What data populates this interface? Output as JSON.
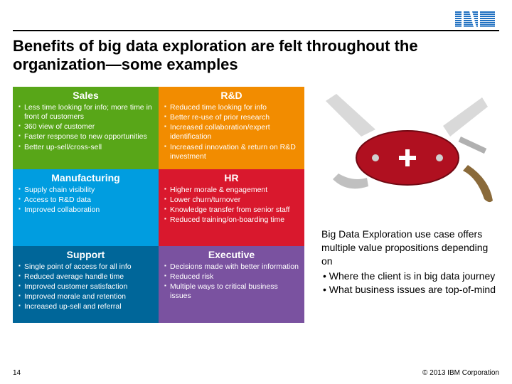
{
  "page_number": "14",
  "copyright": "© 2013 IBM Corporation",
  "title": "Benefits of big data exploration are felt throughout the organization—some examples",
  "colors": {
    "top_rule": "#000000",
    "title_text": "#000000",
    "cell_text": "#ffffff",
    "sales_bg": "#58a618",
    "rd_bg": "#f28c00",
    "mfg_bg": "#009de0",
    "hr_bg": "#d9182d",
    "support_bg": "#006699",
    "exec_bg": "#7a52a0"
  },
  "cells": {
    "sales": {
      "heading": "Sales",
      "items": [
        "Less time looking for info; more time in front of customers",
        "360 view of customer",
        "Faster response to new opportunities",
        "Better up-sell/cross-sell"
      ]
    },
    "rd": {
      "heading": "R&D",
      "items": [
        "Reduced time looking for info",
        "Better re-use of prior research",
        "Increased collaboration/expert identification",
        "Increased innovation & return on R&D investment"
      ]
    },
    "mfg": {
      "heading": "Manufacturing",
      "items": [
        "Supply chain visibility",
        "Access to R&D data",
        "Improved collaboration"
      ]
    },
    "hr": {
      "heading": "HR",
      "items": [
        "Higher morale & engagement",
        "Lower churn/turnover",
        "Knowledge transfer from senior staff",
        "Reduced training/on-boarding time"
      ]
    },
    "support": {
      "heading": "Support",
      "items": [
        "Single point of access for all info",
        "Reduced average handle time",
        "Improved customer satisfaction",
        "Improved morale and retention",
        "Increased up-sell and referral"
      ]
    },
    "exec": {
      "heading": "Executive",
      "items": [
        "Decisions made with better information",
        "Reduced risk",
        "Multiple ways to critical business issues"
      ]
    }
  },
  "caption": {
    "lead": "Big Data Exploration use case offers multiple value propositions depending on",
    "bullets": [
      "• Where the client is in big data journey",
      "• What business issues are top-of-mind"
    ]
  },
  "image": {
    "name": "swiss-army-knife-icon",
    "body_color": "#b01020",
    "blade_color": "#d9d9d9",
    "cross_color": "#ffffff"
  },
  "logo": {
    "name": "ibm-logo",
    "color": "#1f70c1"
  }
}
